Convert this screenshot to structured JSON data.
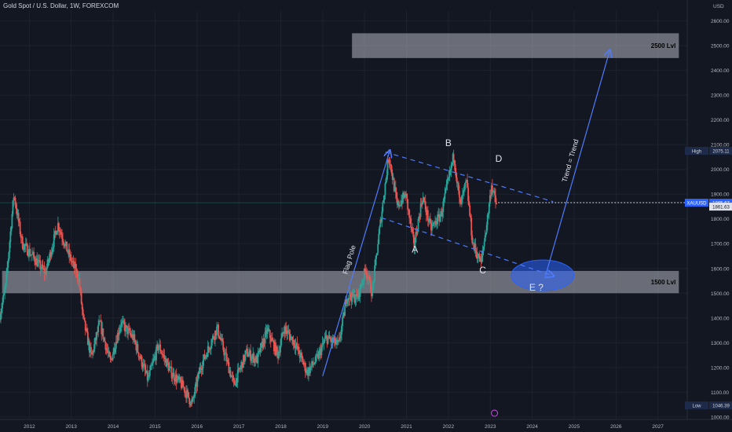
{
  "header": {
    "title": "Gold Spot / U.S. Dollar, 1W, FOREXCOM"
  },
  "chart_data": {
    "type": "candlestick",
    "currency_label": "USD",
    "ylim": [
      990,
      2640
    ],
    "yticks": [
      1000,
      1100,
      1200,
      1300,
      1400,
      1500,
      1600,
      1700,
      1800,
      1900,
      2000,
      2100,
      2200,
      2300,
      2400,
      2500,
      2600
    ],
    "ytick_labels": [
      "1000.00",
      "1100.00",
      "1200.00",
      "1300.00",
      "1400.00",
      "1500.00",
      "1600.00",
      "1700.00",
      "1800.00",
      "1900.00",
      "2000.00",
      "2100.00",
      "2200.00",
      "2300.00",
      "2400.00",
      "2500.00",
      "2600.00"
    ],
    "xlim": [
      2011.3,
      2027.7
    ],
    "xticks": [
      2012,
      2013,
      2014,
      2015,
      2016,
      2017,
      2018,
      2019,
      2020,
      2021,
      2022,
      2023,
      2024,
      2025,
      2026,
      2027
    ],
    "xtick_labels": [
      "2012",
      "2013",
      "2014",
      "2015",
      "2016",
      "2017",
      "2018",
      "2019",
      "2020",
      "2021",
      "2022",
      "2023",
      "2024",
      "2025",
      "2026",
      "2027"
    ],
    "price_path": [
      [
        2011.3,
        1400
      ],
      [
        2011.45,
        1520
      ],
      [
        2011.65,
        1900
      ],
      [
        2011.85,
        1700
      ],
      [
        2012.1,
        1650
      ],
      [
        2012.4,
        1580
      ],
      [
        2012.7,
        1780
      ],
      [
        2012.95,
        1660
      ],
      [
        2013.2,
        1560
      ],
      [
        2013.3,
        1400
      ],
      [
        2013.5,
        1240
      ],
      [
        2013.7,
        1380
      ],
      [
        2013.95,
        1220
      ],
      [
        2014.2,
        1380
      ],
      [
        2014.5,
        1320
      ],
      [
        2014.85,
        1150
      ],
      [
        2015.1,
        1290
      ],
      [
        2015.4,
        1180
      ],
      [
        2015.7,
        1120
      ],
      [
        2015.9,
        1050
      ],
      [
        2016.1,
        1200
      ],
      [
        2016.5,
        1360
      ],
      [
        2016.9,
        1130
      ],
      [
        2017.2,
        1260
      ],
      [
        2017.45,
        1230
      ],
      [
        2017.7,
        1350
      ],
      [
        2017.95,
        1250
      ],
      [
        2018.1,
        1360
      ],
      [
        2018.35,
        1300
      ],
      [
        2018.65,
        1180
      ],
      [
        2018.9,
        1240
      ],
      [
        2019.1,
        1320
      ],
      [
        2019.4,
        1290
      ],
      [
        2019.6,
        1490
      ],
      [
        2019.85,
        1480
      ],
      [
        2020.05,
        1600
      ],
      [
        2020.2,
        1500
      ],
      [
        2020.35,
        1720
      ],
      [
        2020.6,
        2060
      ],
      [
        2020.8,
        1850
      ],
      [
        2021.0,
        1900
      ],
      [
        2021.2,
        1690
      ],
      [
        2021.4,
        1890
      ],
      [
        2021.6,
        1760
      ],
      [
        2021.85,
        1820
      ],
      [
        2022.15,
        2060
      ],
      [
        2022.3,
        1850
      ],
      [
        2022.45,
        1950
      ],
      [
        2022.6,
        1700
      ],
      [
        2022.8,
        1620
      ],
      [
        2022.95,
        1800
      ],
      [
        2023.05,
        1940
      ],
      [
        2023.15,
        1862
      ]
    ],
    "price_line": 1865.67,
    "close_value": 1861.63,
    "high_value": 2075.11,
    "low_value": 1046.39,
    "labels": {
      "price_badge": "XAUUSD",
      "price_value": "1865.67",
      "close_value": "1861.63",
      "high_label": "High",
      "high_value": "2075.11",
      "low_label": "Low",
      "low_value": "1046.39"
    },
    "zones": [
      {
        "label": "2500 Lvl",
        "x0": 2019.7,
        "x1": 2027.5,
        "y0": 2450,
        "y1": 2550
      },
      {
        "label": "1500 Lvl",
        "x0": 2011.35,
        "x1": 2027.5,
        "y0": 1500,
        "y1": 1590
      }
    ],
    "trendlines": [
      {
        "from": [
          2019.0,
          1165
        ],
        "to": [
          2020.6,
          2075
        ],
        "style": "solid",
        "arrow": true,
        "label": "Flag Pole"
      },
      {
        "from": [
          2020.5,
          2070
        ],
        "to": [
          2024.5,
          1870
        ],
        "style": "dashed"
      },
      {
        "from": [
          2020.4,
          1805
        ],
        "to": [
          2024.5,
          1570
        ],
        "style": "dashed",
        "arrow": true
      },
      {
        "from": [
          2024.3,
          1560
        ],
        "to": [
          2025.85,
          2480
        ],
        "style": "solid",
        "arrow": true,
        "label": "Trend = Trend"
      }
    ],
    "ellipse": {
      "cx": 2024.25,
      "cy": 1572,
      "rx": 0.75,
      "ry": 62
    },
    "annotations": [
      {
        "text": "A",
        "x": 2021.2,
        "y": 1665
      },
      {
        "text": "B",
        "x": 2022.0,
        "y": 2095
      },
      {
        "text": "C",
        "x": 2022.82,
        "y": 1580
      },
      {
        "text": "D",
        "x": 2023.2,
        "y": 2030
      },
      {
        "text": "E ?",
        "x": 2024.1,
        "y": 1510
      }
    ],
    "colors": {
      "background": "#131722",
      "up": "#26a69a",
      "down": "#ef5350",
      "zone": "#b2b5be",
      "trend": "#2962ff",
      "ellipse": "#2962ff",
      "badge": "#2962ff"
    }
  }
}
